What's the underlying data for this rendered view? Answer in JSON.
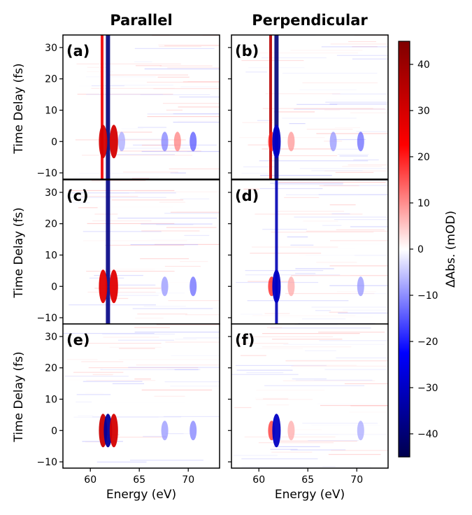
{
  "colors": {
    "negative_max": "#00004d",
    "negative": "#0000ff",
    "zero": "#ffffff",
    "positive": "#ff0000",
    "positive_max": "#7f0000"
  },
  "chart_data": {
    "type": "heatmap",
    "column_titles": [
      "Parallel",
      "Perpendicular"
    ],
    "xlabel": "Energy (eV)",
    "ylabel": "Time Delay (fs)",
    "xlim": [
      57.2,
      73.2
    ],
    "ylim": [
      -12,
      34
    ],
    "xticks": [
      60,
      65,
      70
    ],
    "xtick_labels": [
      "60",
      "65",
      "70"
    ],
    "yticks": [
      -10,
      0,
      10,
      20,
      30
    ],
    "ytick_labels": [
      "−10",
      "0",
      "10",
      "20",
      "30"
    ],
    "colorbar": {
      "label": "ΔAbs. (mOD)",
      "range": [
        -45,
        45
      ],
      "ticks": [
        40,
        30,
        20,
        10,
        0,
        -10,
        -20,
        -30,
        -40
      ],
      "tick_labels": [
        "40",
        "30",
        "20",
        "10",
        "0",
        "−10",
        "−20",
        "−30",
        "−40"
      ],
      "colormap": "seismic"
    },
    "panels": [
      {
        "label": "(a)",
        "row": 0,
        "col": 0,
        "orientation": "parallel",
        "features": [
          {
            "energy_eV": 61.2,
            "type": "static",
            "value_mOD": 25
          },
          {
            "energy_eV": 61.8,
            "type": "static",
            "value_mOD": -40
          },
          {
            "energy_eV": 61.3,
            "type": "transient",
            "delay_fs": 0,
            "value_mOD": 30
          },
          {
            "energy_eV": 62.4,
            "type": "transient",
            "delay_fs": 0,
            "value_mOD": 30
          },
          {
            "energy_eV": 63.2,
            "type": "transient",
            "delay_fs": 0,
            "value_mOD": -8
          },
          {
            "energy_eV": 67.6,
            "type": "transient",
            "delay_fs": 0,
            "value_mOD": -12
          },
          {
            "energy_eV": 68.9,
            "type": "transient",
            "delay_fs": 0,
            "value_mOD": 12
          },
          {
            "energy_eV": 70.5,
            "type": "transient",
            "delay_fs": 0,
            "value_mOD": -16
          }
        ]
      },
      {
        "label": "(b)",
        "row": 0,
        "col": 1,
        "orientation": "perpendicular",
        "features": [
          {
            "energy_eV": 61.2,
            "type": "static",
            "value_mOD": 35
          },
          {
            "energy_eV": 61.8,
            "type": "static",
            "value_mOD": -40
          },
          {
            "energy_eV": 61.3,
            "type": "transient",
            "delay_fs": 0,
            "value_mOD": 20
          },
          {
            "energy_eV": 61.8,
            "type": "transient",
            "delay_fs": 0,
            "value_mOD": -30
          },
          {
            "energy_eV": 63.3,
            "type": "transient",
            "delay_fs": 0,
            "value_mOD": 10
          },
          {
            "energy_eV": 67.6,
            "type": "transient",
            "delay_fs": 0,
            "value_mOD": -10
          },
          {
            "energy_eV": 70.4,
            "type": "transient",
            "delay_fs": 0,
            "value_mOD": -14
          }
        ]
      },
      {
        "label": "(c)",
        "row": 1,
        "col": 0,
        "orientation": "parallel",
        "features": [
          {
            "energy_eV": 61.8,
            "type": "static",
            "value_mOD": -38
          },
          {
            "energy_eV": 61.3,
            "type": "transient",
            "delay_fs": 0,
            "value_mOD": 28
          },
          {
            "energy_eV": 62.4,
            "type": "transient",
            "delay_fs": 0,
            "value_mOD": 28
          },
          {
            "energy_eV": 67.6,
            "type": "transient",
            "delay_fs": 0,
            "value_mOD": -10
          },
          {
            "energy_eV": 70.5,
            "type": "transient",
            "delay_fs": 0,
            "value_mOD": -14
          }
        ]
      },
      {
        "label": "(d)",
        "row": 1,
        "col": 1,
        "orientation": "perpendicular",
        "features": [
          {
            "energy_eV": 61.8,
            "type": "static",
            "value_mOD": -32
          },
          {
            "energy_eV": 61.3,
            "type": "transient",
            "delay_fs": 0,
            "value_mOD": 22
          },
          {
            "energy_eV": 61.8,
            "type": "transient",
            "delay_fs": 0,
            "value_mOD": -30
          },
          {
            "energy_eV": 63.3,
            "type": "transient",
            "delay_fs": 0,
            "value_mOD": 8
          },
          {
            "energy_eV": 70.4,
            "type": "transient",
            "delay_fs": 0,
            "value_mOD": -10
          }
        ]
      },
      {
        "label": "(e)",
        "row": 2,
        "col": 0,
        "orientation": "parallel",
        "features": [
          {
            "energy_eV": 61.3,
            "type": "transient",
            "delay_fs": 0,
            "value_mOD": 32
          },
          {
            "energy_eV": 61.8,
            "type": "transient",
            "delay_fs": 0,
            "value_mOD": -35
          },
          {
            "energy_eV": 62.4,
            "type": "transient",
            "delay_fs": 0,
            "value_mOD": 30
          },
          {
            "energy_eV": 67.6,
            "type": "transient",
            "delay_fs": 0,
            "value_mOD": -10
          },
          {
            "energy_eV": 70.5,
            "type": "transient",
            "delay_fs": 0,
            "value_mOD": -12
          }
        ]
      },
      {
        "label": "(f)",
        "row": 2,
        "col": 1,
        "orientation": "perpendicular",
        "features": [
          {
            "energy_eV": 61.3,
            "type": "transient",
            "delay_fs": 0,
            "value_mOD": 20
          },
          {
            "energy_eV": 61.8,
            "type": "transient",
            "delay_fs": 0,
            "value_mOD": -30
          },
          {
            "energy_eV": 63.3,
            "type": "transient",
            "delay_fs": 0,
            "value_mOD": 8
          },
          {
            "energy_eV": 70.4,
            "type": "transient",
            "delay_fs": 0,
            "value_mOD": -8
          }
        ]
      }
    ]
  }
}
